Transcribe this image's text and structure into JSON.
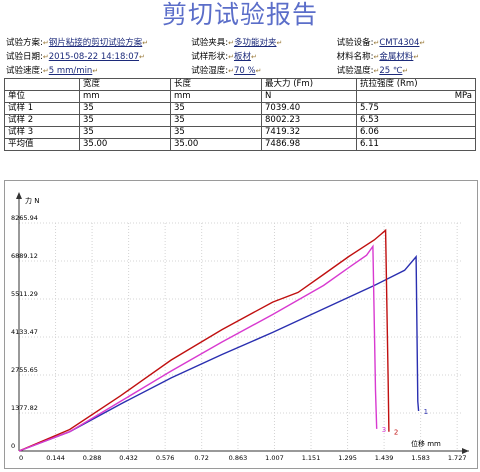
{
  "report": {
    "title": "剪切试验报告"
  },
  "info": {
    "scheme_label": "试验方案:",
    "scheme_value": "钢片粘接的剪切试验方案",
    "fixture_label": "试验夹具:",
    "fixture_value": "多功能对夹",
    "device_label": "试验设备:",
    "device_value": "CMT4304",
    "date_label": "试验日期:",
    "date_value": "2015-08-22 14:18:07",
    "shape_label": "试样形状:",
    "shape_value": "板材",
    "material_label": "材料名称:",
    "material_value": "金属材料",
    "speed_label": "试验速度:",
    "speed_value": "5 mm/min",
    "humidity_label": "试验湿度:",
    "humidity_value": "70 %",
    "temperature_label": "试验温度:",
    "temperature_value": "25 ℃"
  },
  "results_table": {
    "headers": [
      "",
      "宽度",
      "长度",
      "最大力 (Fm)",
      "抗拉强度 (Rm)"
    ],
    "units": [
      "单位",
      "mm",
      "mm",
      "N",
      "MPa"
    ],
    "rows": [
      [
        "试样 1",
        "35",
        "35",
        "7039.40",
        "5.75"
      ],
      [
        "试样 2",
        "35",
        "35",
        "8002.23",
        "6.53"
      ],
      [
        "试样 3",
        "35",
        "35",
        "7419.32",
        "6.06"
      ],
      [
        "平均值",
        "35.00",
        "35.00",
        "7486.98",
        "6.11"
      ]
    ]
  },
  "chart_data": {
    "type": "line",
    "xlabel": "位移 mm",
    "ylabel": "力 N",
    "xlim": [
      0,
      1.75
    ],
    "ylim": [
      0,
      8265.94
    ],
    "x_ticks": [
      "0",
      "0.144",
      "0.288",
      "0.432",
      "0.576",
      "0.72",
      "0.863",
      "1.007",
      "1.151",
      "1.295",
      "1.439",
      "1.583",
      "1.727"
    ],
    "y_ticks": [
      "0",
      "1377.82",
      "2755.65",
      "4133.47",
      "5511.29",
      "6889.12",
      "8265.94"
    ],
    "series": [
      {
        "name": "1",
        "color": "#2a2fb0",
        "points": [
          [
            0,
            0
          ],
          [
            0.2,
            700
          ],
          [
            0.4,
            1700
          ],
          [
            0.6,
            2650
          ],
          [
            0.8,
            3500
          ],
          [
            1.0,
            4300
          ],
          [
            1.2,
            5150
          ],
          [
            1.4,
            6000
          ],
          [
            1.52,
            6550
          ],
          [
            1.565,
            7039
          ],
          [
            1.572,
            1800
          ],
          [
            1.575,
            1450
          ]
        ]
      },
      {
        "name": "2",
        "color": "#c01010",
        "points": [
          [
            0,
            0
          ],
          [
            0.2,
            780
          ],
          [
            0.4,
            2000
          ],
          [
            0.6,
            3300
          ],
          [
            0.8,
            4400
          ],
          [
            1.0,
            5400
          ],
          [
            1.1,
            5750
          ],
          [
            1.2,
            6400
          ],
          [
            1.3,
            7050
          ],
          [
            1.4,
            7650
          ],
          [
            1.445,
            8002
          ],
          [
            1.455,
            2450
          ],
          [
            1.458,
            700
          ]
        ]
      },
      {
        "name": "3",
        "color": "#d83ad0",
        "points": [
          [
            0,
            0
          ],
          [
            0.2,
            700
          ],
          [
            0.4,
            1800
          ],
          [
            0.6,
            2900
          ],
          [
            0.8,
            3950
          ],
          [
            1.0,
            4950
          ],
          [
            1.2,
            6000
          ],
          [
            1.3,
            6650
          ],
          [
            1.37,
            7100
          ],
          [
            1.395,
            7419
          ],
          [
            1.405,
            2200
          ],
          [
            1.41,
            800
          ]
        ]
      }
    ]
  }
}
